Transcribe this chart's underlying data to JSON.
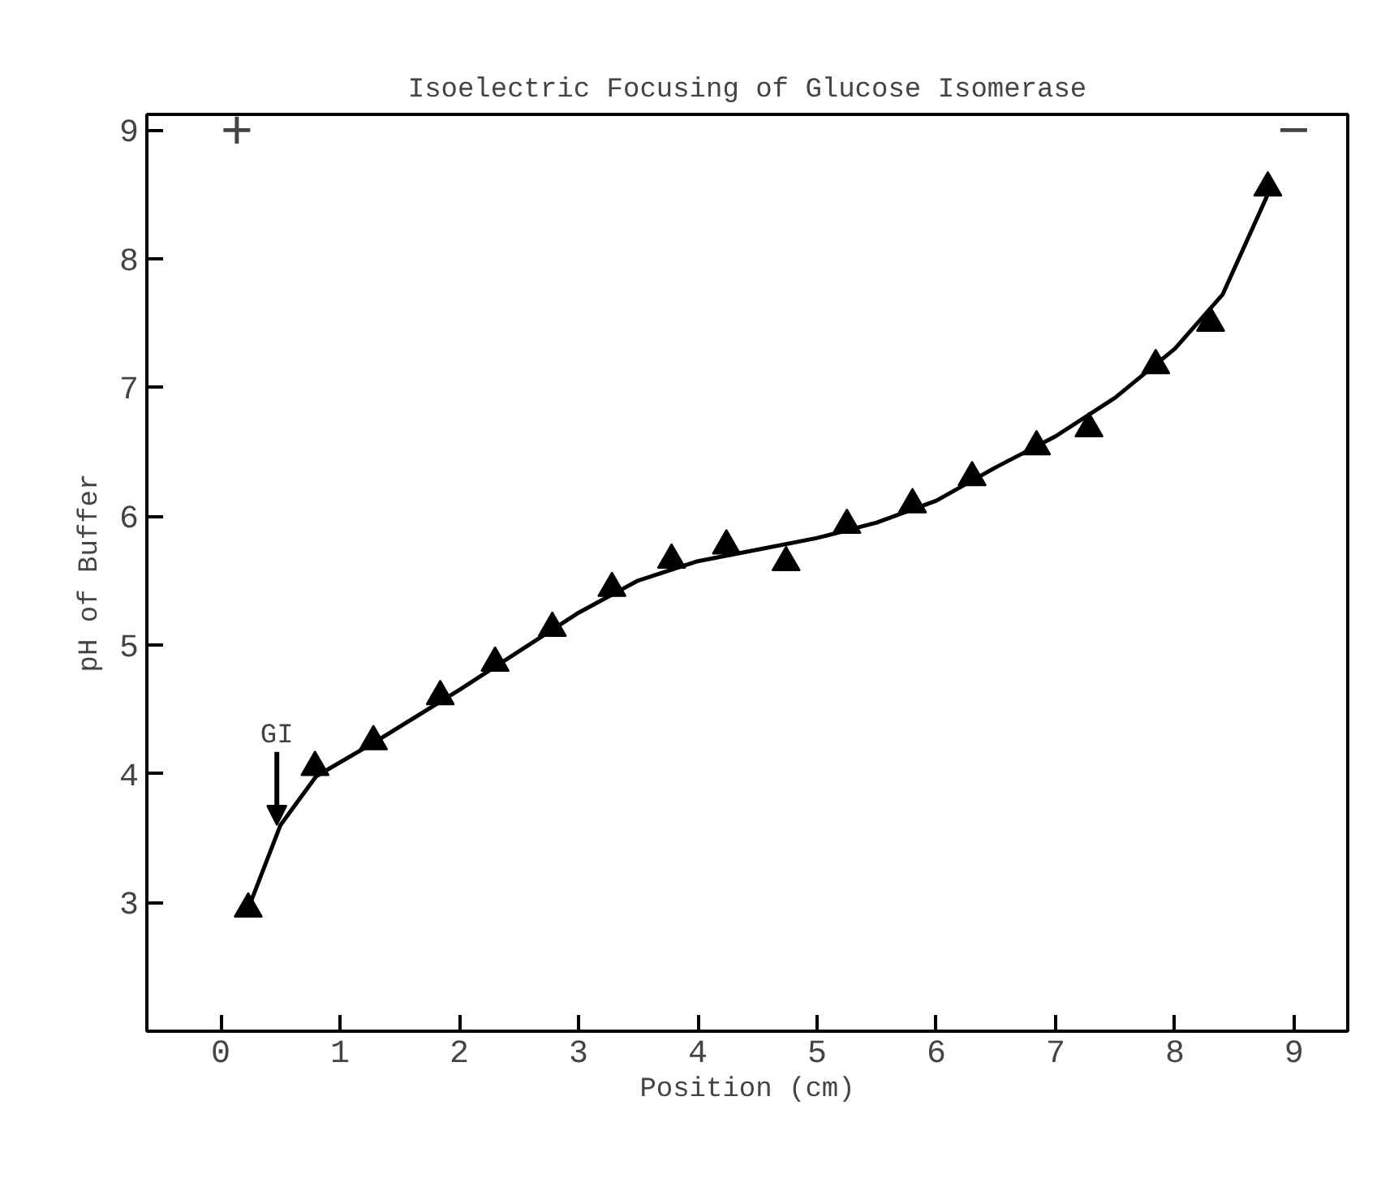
{
  "chart_data": {
    "type": "scatter",
    "title": "Isoelectric Focusing of Glucose Isomerase",
    "xlabel": "Position (cm)",
    "ylabel": "pH of Buffer",
    "xlim": [
      -0.62,
      9.45
    ],
    "ylim": [
      2.0,
      9.12
    ],
    "xticks": [
      0,
      1,
      2,
      3,
      4,
      5,
      6,
      7,
      8,
      9
    ],
    "yticks": [
      3,
      4,
      5,
      6,
      7,
      8,
      9
    ],
    "grid": false,
    "series": [
      {
        "marker": "triangle",
        "color": "#000000",
        "x": [
          0.23,
          0.79,
          1.28,
          1.84,
          2.3,
          2.78,
          3.28,
          3.78,
          4.24,
          4.74,
          5.25,
          5.8,
          6.3,
          6.84,
          7.28,
          7.84,
          8.3,
          8.78
        ],
        "values": [
          2.95,
          4.05,
          4.25,
          4.6,
          4.86,
          5.13,
          5.44,
          5.66,
          5.77,
          5.64,
          5.93,
          6.09,
          6.3,
          6.54,
          6.68,
          7.17,
          7.5,
          8.55
        ]
      },
      {
        "type": "line",
        "line_style": "solid",
        "color": "#000000",
        "x": [
          0.25,
          0.5,
          0.8,
          1.3,
          2.0,
          3.0,
          3.5,
          4.0,
          4.5,
          5.0,
          5.5,
          6.0,
          6.5,
          7.0,
          7.5,
          8.0,
          8.4,
          8.78
        ],
        "values": [
          3.0,
          3.6,
          3.98,
          4.25,
          4.65,
          5.25,
          5.5,
          5.65,
          5.74,
          5.83,
          5.95,
          6.12,
          6.38,
          6.62,
          6.92,
          7.3,
          7.72,
          8.5
        ]
      }
    ],
    "annotations": [
      {
        "text": "GI",
        "x": 0.47,
        "y": 3.6
      },
      "+",
      "−"
    ]
  }
}
